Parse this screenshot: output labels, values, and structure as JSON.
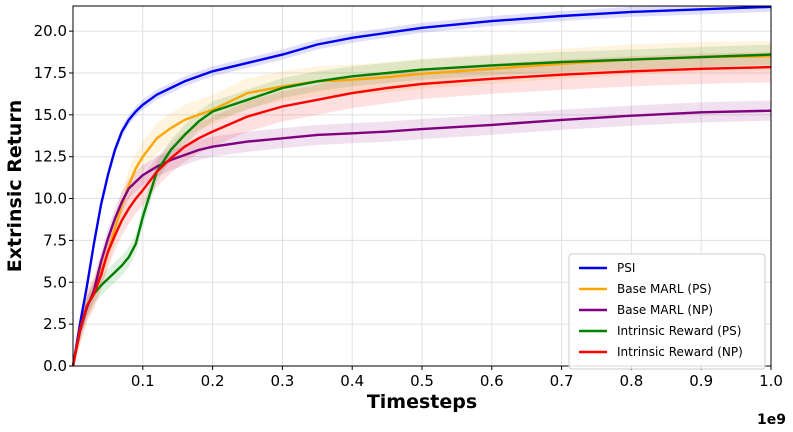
{
  "chart_data": {
    "type": "line",
    "title": "",
    "xlabel": "Timesteps",
    "ylabel": "Extrinsic Return",
    "x_offset_label": "1e9",
    "xlim": [
      0.0,
      1.0
    ],
    "ylim": [
      0.0,
      21.5
    ],
    "x_ticks": [
      0.1,
      0.2,
      0.3,
      0.4,
      0.5,
      0.6,
      0.7,
      0.8,
      0.9,
      1.0
    ],
    "x_tick_labels": [
      "0.1",
      "0.2",
      "0.3",
      "0.4",
      "0.5",
      "0.6",
      "0.7",
      "0.8",
      "0.9",
      "1.0"
    ],
    "y_ticks": [
      0.0,
      2.5,
      5.0,
      7.5,
      10.0,
      12.5,
      15.0,
      17.5,
      20.0
    ],
    "y_tick_labels": [
      "0.0",
      "2.5",
      "5.0",
      "7.5",
      "10.0",
      "12.5",
      "15.0",
      "17.5",
      "20.0"
    ],
    "grid": true,
    "legend_position": "bottom-right",
    "x": [
      0.0,
      0.01,
      0.02,
      0.03,
      0.04,
      0.05,
      0.06,
      0.07,
      0.08,
      0.09,
      0.1,
      0.12,
      0.14,
      0.16,
      0.18,
      0.2,
      0.25,
      0.3,
      0.35,
      0.4,
      0.45,
      0.5,
      0.6,
      0.7,
      0.8,
      0.9,
      1.0
    ],
    "series": [
      {
        "name": "PSI",
        "color": "#0000ee",
        "values": [
          0.0,
          2.5,
          4.8,
          7.3,
          9.6,
          11.4,
          12.9,
          14.0,
          14.7,
          15.2,
          15.6,
          16.2,
          16.6,
          17.0,
          17.3,
          17.6,
          18.1,
          18.6,
          19.2,
          19.6,
          19.9,
          20.2,
          20.6,
          20.9,
          21.15,
          21.3,
          21.45
        ],
        "band": 0.3
      },
      {
        "name": "Base MARL (PS)",
        "color": "#ffa500",
        "values": [
          0.0,
          2.1,
          3.5,
          4.5,
          5.6,
          6.8,
          8.2,
          9.6,
          10.8,
          11.8,
          12.5,
          13.6,
          14.2,
          14.7,
          15.0,
          15.3,
          16.3,
          16.7,
          17.0,
          17.1,
          17.25,
          17.45,
          17.75,
          18.05,
          18.3,
          18.45,
          18.5
        ],
        "band": 0.9
      },
      {
        "name": "Base MARL (NP)",
        "color": "#800080",
        "values": [
          0.0,
          2.1,
          3.5,
          4.5,
          6.2,
          7.6,
          8.8,
          9.8,
          10.6,
          11.0,
          11.4,
          11.9,
          12.3,
          12.6,
          12.9,
          13.1,
          13.4,
          13.6,
          13.8,
          13.9,
          14.0,
          14.15,
          14.4,
          14.7,
          14.95,
          15.15,
          15.25
        ],
        "band": 0.6
      },
      {
        "name": "Intrinsic Reward (PS)",
        "color": "#008000",
        "values": [
          0.0,
          2.2,
          3.6,
          4.3,
          4.8,
          5.2,
          5.6,
          6.0,
          6.5,
          7.3,
          8.9,
          11.6,
          12.9,
          13.8,
          14.6,
          15.2,
          15.9,
          16.6,
          17.0,
          17.3,
          17.5,
          17.7,
          17.95,
          18.15,
          18.3,
          18.45,
          18.6
        ],
        "band": 0.6
      },
      {
        "name": "Intrinsic Reward (NP)",
        "color": "#ff0000",
        "values": [
          0.0,
          2.2,
          3.6,
          4.3,
          5.4,
          6.8,
          7.8,
          8.7,
          9.4,
          10.0,
          10.5,
          11.6,
          12.4,
          13.1,
          13.6,
          14.0,
          14.9,
          15.5,
          15.9,
          16.3,
          16.6,
          16.85,
          17.15,
          17.4,
          17.6,
          17.75,
          17.85
        ],
        "band": 0.9
      }
    ]
  }
}
